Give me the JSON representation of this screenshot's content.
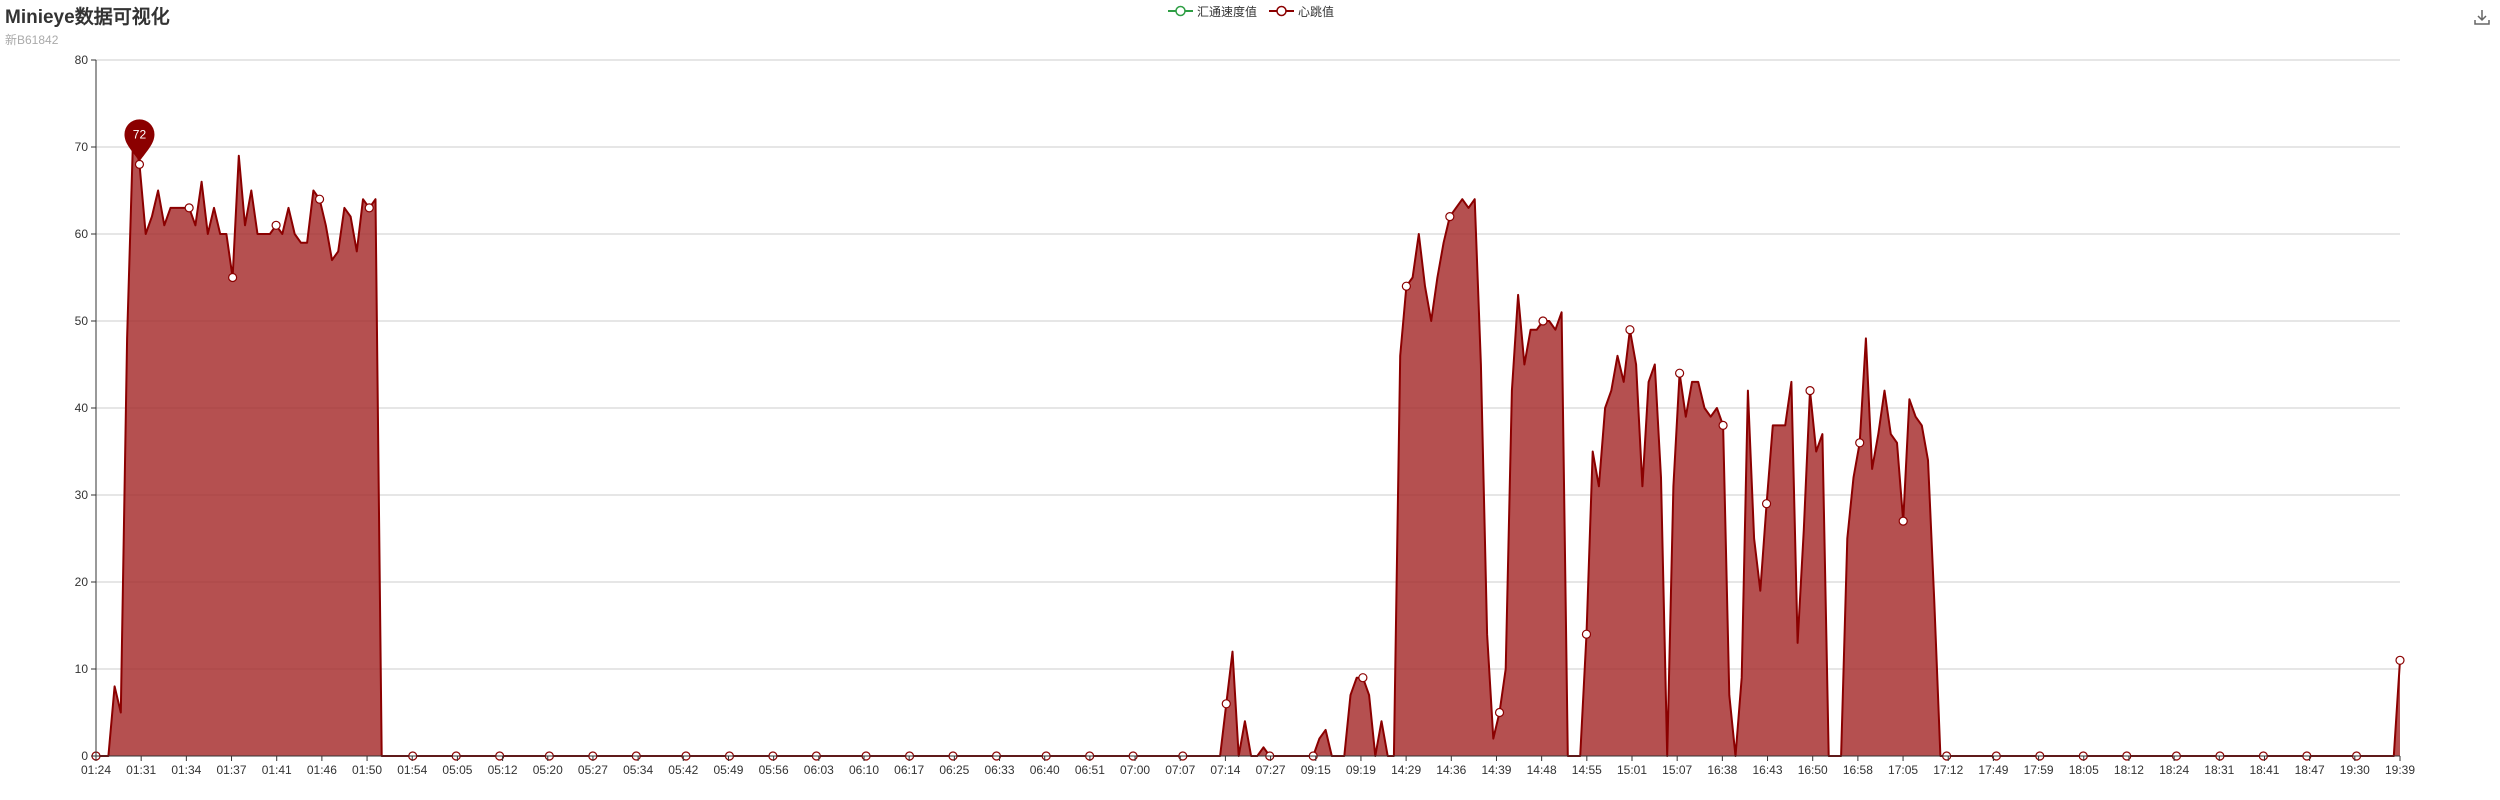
{
  "title": "Minieye数据可视化",
  "subtitle": "新B61842",
  "legend": [
    {
      "name": "汇通速度值",
      "color": "#2e9e44"
    },
    {
      "name": "心跳值",
      "color": "#8b0000"
    }
  ],
  "toolbox": {
    "icon": "download-icon"
  },
  "colors": {
    "series_line": "#8b0000",
    "series_fill": "#a52a2a",
    "marker": "#8b0000",
    "grid": "#cccccc",
    "axis": "#333333"
  },
  "chart_data": {
    "type": "area",
    "ylim": [
      0,
      80
    ],
    "yticks": [
      0,
      10,
      20,
      30,
      40,
      50,
      60,
      70,
      80
    ],
    "grid": true,
    "legend_position": "top-center",
    "x_ticks": [
      "01:24",
      "01:31",
      "01:34",
      "01:37",
      "01:41",
      "01:46",
      "01:50",
      "01:54",
      "05:05",
      "05:12",
      "05:20",
      "05:27",
      "05:34",
      "05:42",
      "05:49",
      "05:56",
      "06:03",
      "06:10",
      "06:17",
      "06:25",
      "06:33",
      "06:40",
      "06:51",
      "07:00",
      "07:07",
      "07:14",
      "07:27",
      "09:15",
      "09:19",
      "14:29",
      "14:36",
      "14:39",
      "14:48",
      "14:55",
      "15:01",
      "15:07",
      "16:38",
      "16:43",
      "16:50",
      "16:58",
      "17:05",
      "17:12",
      "17:49",
      "17:59",
      "18:05",
      "18:12",
      "18:24",
      "18:31",
      "18:41",
      "18:47",
      "19:30",
      "19:39"
    ],
    "max_marker": {
      "index": 7,
      "value": "72"
    },
    "series": [
      {
        "name": "心跳值",
        "values": [
          0,
          0,
          0,
          8,
          5,
          48,
          72,
          68,
          60,
          62,
          65,
          61,
          63,
          63,
          63,
          63,
          61,
          66,
          60,
          63,
          60,
          60,
          55,
          69,
          61,
          65,
          60,
          60,
          60,
          61,
          60,
          63,
          60,
          59,
          59,
          65,
          64,
          61,
          57,
          58,
          63,
          62,
          58,
          64,
          63,
          64,
          0,
          0,
          0,
          0,
          0,
          0,
          0,
          0,
          0,
          0,
          0,
          0,
          0,
          0,
          0,
          0,
          0,
          0,
          0,
          0,
          0,
          0,
          0,
          0,
          0,
          0,
          0,
          0,
          0,
          0,
          0,
          0,
          0,
          0,
          0,
          0,
          0,
          0,
          0,
          0,
          0,
          0,
          0,
          0,
          0,
          0,
          0,
          0,
          0,
          0,
          0,
          0,
          0,
          0,
          0,
          0,
          0,
          0,
          0,
          0,
          0,
          0,
          0,
          0,
          0,
          0,
          0,
          0,
          0,
          0,
          0,
          0,
          0,
          0,
          0,
          0,
          0,
          0,
          0,
          0,
          0,
          0,
          0,
          0,
          0,
          0,
          0,
          0,
          0,
          0,
          0,
          0,
          0,
          0,
          0,
          0,
          0,
          0,
          0,
          0,
          0,
          0,
          0,
          0,
          0,
          0,
          0,
          0,
          0,
          0,
          0,
          0,
          0,
          0,
          0,
          0,
          0,
          0,
          0,
          0,
          0,
          0,
          0,
          0,
          0,
          0,
          0,
          0,
          0,
          0,
          0,
          0,
          0,
          0,
          0,
          0,
          6,
          12,
          0,
          4,
          0,
          0,
          1,
          0,
          0,
          0,
          0,
          0,
          0,
          0,
          0,
          2,
          3,
          0,
          0,
          0,
          7,
          9,
          9,
          7,
          0,
          4,
          0,
          0,
          46,
          54,
          55,
          60,
          54,
          50,
          55,
          59,
          62,
          63,
          64,
          63,
          64,
          45,
          14,
          2,
          5,
          10,
          42,
          53,
          45,
          49,
          49,
          50,
          50,
          49,
          51,
          0,
          0,
          0,
          14,
          35,
          31,
          40,
          42,
          46,
          43,
          49,
          45,
          31,
          43,
          45,
          32,
          0,
          31,
          44,
          39,
          43,
          43,
          40,
          39,
          40,
          38,
          7,
          0,
          9,
          42,
          25,
          19,
          29,
          38,
          38,
          38,
          43,
          13,
          26,
          42,
          35,
          37,
          0,
          0,
          0,
          25,
          32,
          36,
          48,
          33,
          37,
          42,
          37,
          36,
          27,
          41,
          39,
          38,
          34,
          18,
          0,
          0,
          0,
          0,
          0,
          0,
          0,
          0,
          0,
          0,
          0,
          0,
          0,
          0,
          0,
          0,
          0,
          0,
          0,
          0,
          0,
          0,
          0,
          0,
          0,
          0,
          0,
          0,
          0,
          0,
          0,
          0,
          0,
          0,
          0,
          0,
          0,
          0,
          0,
          0,
          0,
          0,
          0,
          0,
          0,
          0,
          0,
          0,
          0,
          0,
          0,
          0,
          0,
          0,
          0,
          0,
          0,
          0,
          0,
          0,
          0,
          0,
          0,
          0,
          0,
          0,
          0,
          0,
          0,
          0,
          0,
          0,
          0,
          0,
          11
        ]
      },
      {
        "name": "汇通速度值",
        "values": []
      }
    ]
  }
}
